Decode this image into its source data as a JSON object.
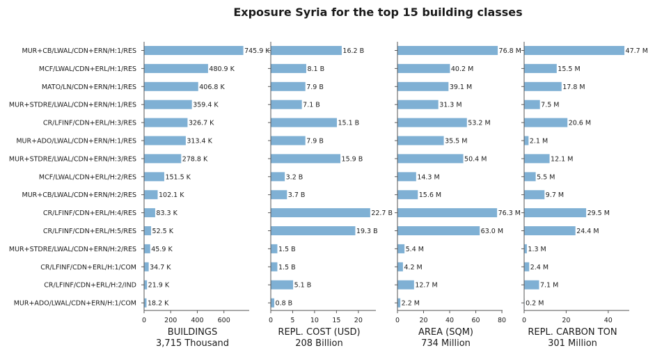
{
  "chart_data": {
    "type": "bar",
    "orientation": "horizontal",
    "title": "Exposure Syria for the top 15 building classes",
    "categories": [
      "MUR+CB/LWAL/CDN+ERN/H:1/RES",
      "MCF/LWAL/CDN+ERL/H:1/RES",
      "MATO/LN/CDN+ERN/H:1/RES",
      "MUR+STDRE/LWAL/CDN+ERN/H:1/RES",
      "CR/LFINF/CDN+ERL/H:3/RES",
      "MUR+ADO/LWAL/CDN+ERN/H:1/RES",
      "MUR+STDRE/LWAL/CDN+ERN/H:3/RES",
      "MCF/LWAL/CDN+ERL/H:2/RES",
      "MUR+CB/LWAL/CDN+ERN/H:2/RES",
      "CR/LFINF/CDN+ERL/H:4/RES",
      "CR/LFINF/CDN+ERL/H:5/RES",
      "MUR+STDRE/LWAL/CDN+ERN/H:2/RES",
      "CR/LFINF/CDN+ERL/H:1/COM",
      "CR/LFINF/CDN+ERL/H:2/IND",
      "MUR+ADO/LWAL/CDN+ERN/H:1/COM"
    ],
    "bar_color": "#7fb0d4",
    "panels": [
      {
        "id": "buildings",
        "xlabel": "BUILDINGS",
        "xlabel2": "3,715 Thousand",
        "xlim": [
          0,
          790
        ],
        "ticks": [
          0,
          200,
          400,
          600
        ],
        "tick_labels": [
          "0",
          "200",
          "400",
          "600"
        ],
        "values": [
          745.9,
          480.9,
          406.8,
          359.4,
          326.7,
          313.4,
          278.8,
          151.5,
          102.1,
          83.3,
          52.5,
          45.9,
          34.7,
          21.9,
          18.2
        ],
        "labels": [
          "745.9 K",
          "480.9 K",
          "406.8 K",
          "359.4 K",
          "326.7 K",
          "313.4 K",
          "278.8 K",
          "151.5 K",
          "102.1 K",
          "83.3 K",
          "52.5 K",
          "45.9 K",
          "34.7 K",
          "21.9 K",
          "18.2 K"
        ]
      },
      {
        "id": "cost",
        "xlabel": "REPL. COST (USD)",
        "xlabel2": "208 Billion",
        "xlim": [
          0,
          24
        ],
        "ticks": [
          0,
          5,
          10,
          15,
          20
        ],
        "tick_labels": [
          "0",
          "5",
          "10",
          "15",
          "20"
        ],
        "values": [
          16.2,
          8.1,
          7.9,
          7.1,
          15.1,
          7.9,
          15.9,
          3.2,
          3.7,
          22.7,
          19.3,
          1.5,
          1.5,
          5.1,
          0.8
        ],
        "labels": [
          "16.2 B",
          "8.1 B",
          "7.9 B",
          "7.1 B",
          "15.1 B",
          "7.9 B",
          "15.9 B",
          "3.2 B",
          "3.7 B",
          "22.7 B",
          "19.3 B",
          "1.5 B",
          "1.5 B",
          "5.1 B",
          "0.8 B"
        ]
      },
      {
        "id": "area",
        "xlabel": "AREA (SQM)",
        "xlabel2": "734 Million",
        "xlim": [
          0,
          80.5
        ],
        "ticks": [
          0,
          20,
          40,
          60,
          80
        ],
        "tick_labels": [
          "0",
          "20",
          "40",
          "60",
          "80"
        ],
        "values": [
          76.8,
          40.2,
          39.1,
          31.3,
          53.2,
          35.5,
          50.4,
          14.3,
          15.6,
          76.3,
          63.0,
          5.4,
          4.2,
          12.7,
          2.2
        ],
        "labels": [
          "76.8 M",
          "40.2 M",
          "39.1 M",
          "31.3 M",
          "53.2 M",
          "35.5 M",
          "50.4 M",
          "14.3 M",
          "15.6 M",
          "76.3 M",
          "63.0 M",
          "5.4 M",
          "4.2 M",
          "12.7 M",
          "2.2 M"
        ]
      },
      {
        "id": "carbon",
        "xlabel": "REPL. CARBON TON",
        "xlabel2": "301 Million",
        "xlim": [
          0,
          50
        ],
        "ticks": [
          0,
          20,
          40
        ],
        "tick_labels": [
          "0",
          "20",
          "40"
        ],
        "values": [
          47.7,
          15.5,
          17.8,
          7.5,
          20.6,
          2.1,
          12.1,
          5.5,
          9.7,
          29.5,
          24.4,
          1.3,
          2.4,
          7.1,
          0.2
        ],
        "labels": [
          "47.7 M",
          "15.5 M",
          "17.8 M",
          "7.5 M",
          "20.6 M",
          "2.1 M",
          "12.1 M",
          "5.5 M",
          "9.7 M",
          "29.5 M",
          "24.4 M",
          "1.3 M",
          "2.4 M",
          "7.1 M",
          "0.2 M"
        ]
      }
    ]
  }
}
